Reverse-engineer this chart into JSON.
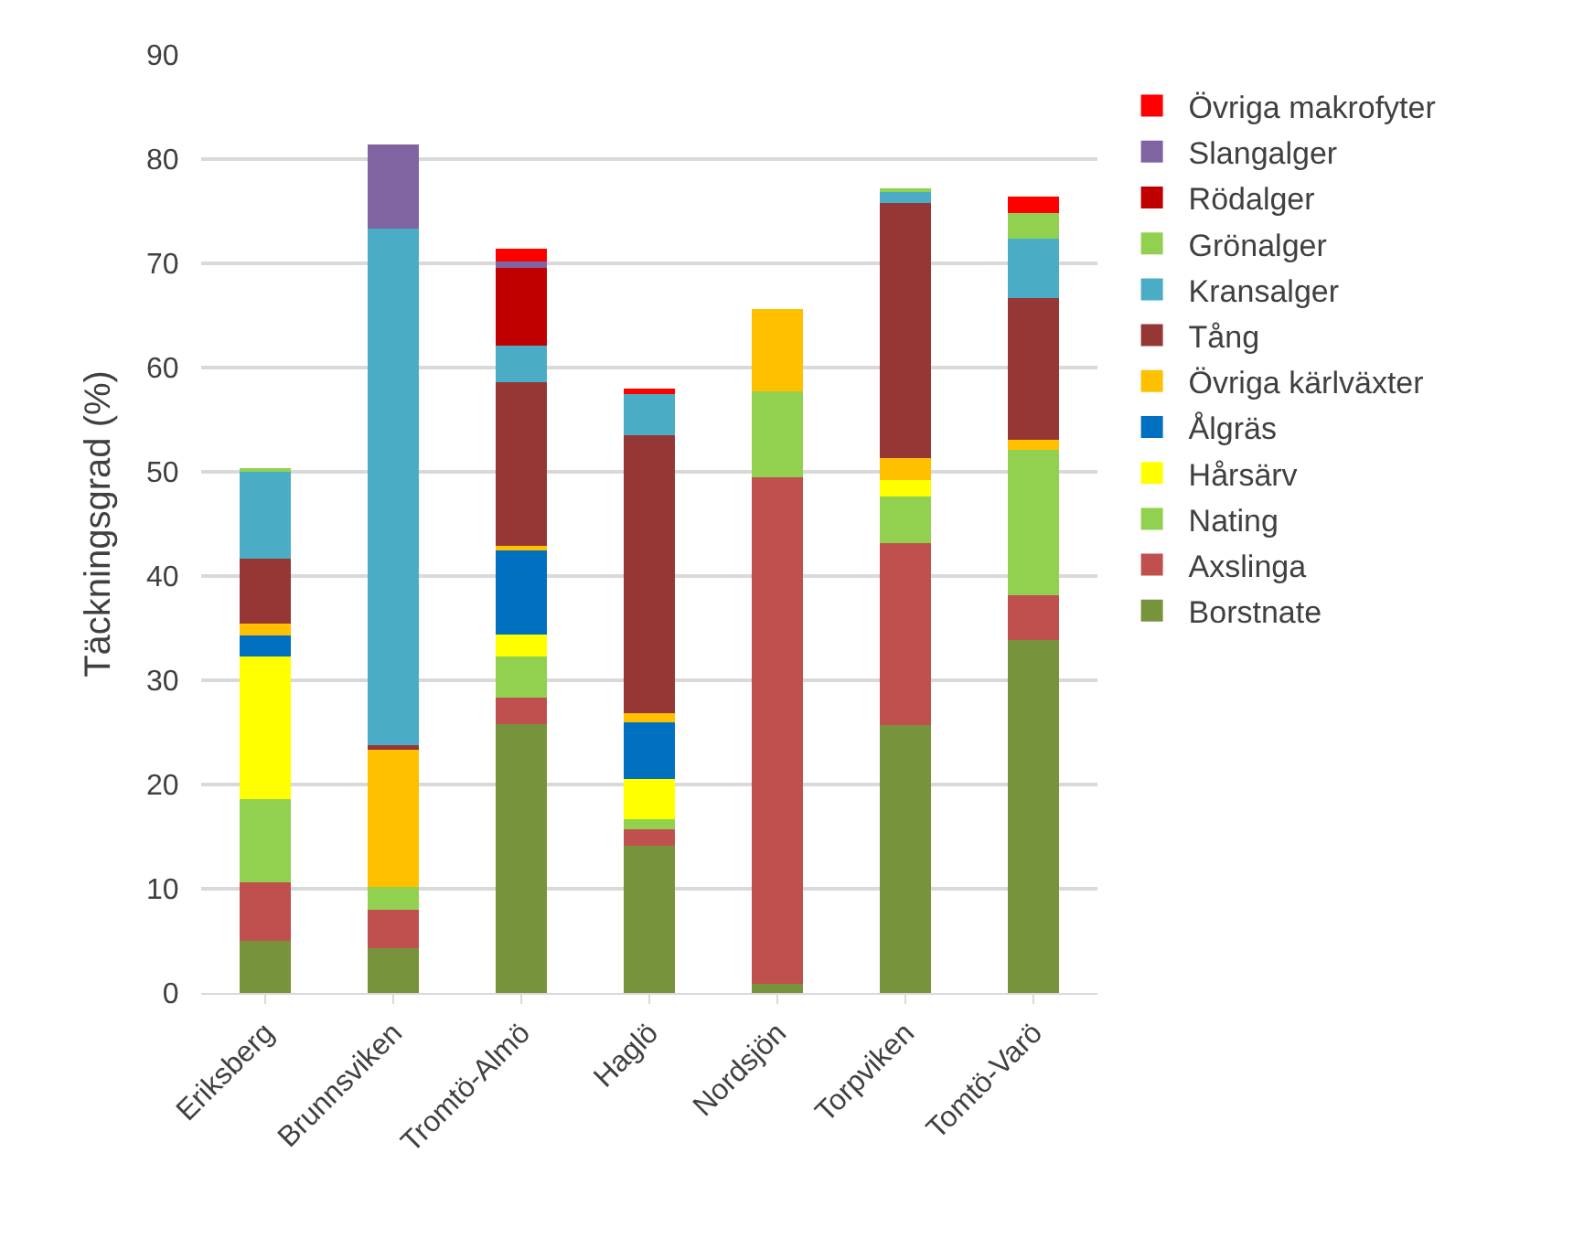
{
  "chart_data": {
    "type": "bar",
    "stacked": true,
    "ylabel": "Täckningsgrad (%)",
    "categories": [
      "Eriksberg",
      "Brunnsviken",
      "Tromtö-Almö",
      "Haglö",
      "Nordsjön",
      "Torpviken",
      "Tomtö-Varö"
    ],
    "series": [
      {
        "name": "Borstnate",
        "color": "#77933c",
        "values": [
          5.0,
          4.3,
          25.8,
          14.1,
          0.9,
          25.7,
          33.9
        ]
      },
      {
        "name": "Axslinga",
        "color": "#c0504d",
        "values": [
          5.6,
          3.7,
          2.5,
          1.6,
          48.6,
          17.5,
          4.3
        ]
      },
      {
        "name": "Nating",
        "color": "#92d050",
        "values": [
          8.0,
          2.2,
          4.0,
          1.0,
          8.2,
          4.4,
          13.9
        ]
      },
      {
        "name": "Hårsärv",
        "color": "#ffff00",
        "values": [
          13.7,
          null,
          2.1,
          3.8,
          null,
          1.6,
          null
        ]
      },
      {
        "name": "Ålgräs",
        "color": "#0070c0",
        "values": [
          2.0,
          null,
          8.1,
          5.5,
          null,
          null,
          null
        ]
      },
      {
        "name": "Övriga kärlväxter",
        "color": "#ffc000",
        "values": [
          1.1,
          13.3,
          0.4,
          0.8,
          7.9,
          2.1,
          1.0
        ]
      },
      {
        "name": "Tång",
        "color": "#953735",
        "values": [
          6.3,
          0.3,
          15.7,
          26.7,
          null,
          24.5,
          13.6
        ]
      },
      {
        "name": "Kransalger",
        "color": "#4bacc6",
        "values": [
          8.4,
          49.5,
          3.5,
          4.0,
          null,
          1.0,
          5.7
        ]
      },
      {
        "name": "Grönalger",
        "color": "#92d050",
        "values": [
          0.2,
          null,
          null,
          null,
          null,
          0.4,
          2.4
        ]
      },
      {
        "name": "Rödalger",
        "color": "#c00000",
        "values": [
          null,
          null,
          7.5,
          null,
          null,
          null,
          null
        ]
      },
      {
        "name": "Slangalger",
        "color": "#8064a2",
        "values": [
          null,
          8.1,
          0.6,
          null,
          null,
          null,
          null
        ]
      },
      {
        "name": "Övriga makrofyter",
        "color": "#ff0000",
        "values": [
          null,
          null,
          1.2,
          0.5,
          null,
          null,
          1.6
        ]
      }
    ],
    "ylim": [
      0,
      90
    ],
    "yticks": [
      0,
      10,
      20,
      30,
      40,
      50,
      60,
      70,
      80,
      90
    ],
    "grid": "y",
    "legend": "right"
  }
}
